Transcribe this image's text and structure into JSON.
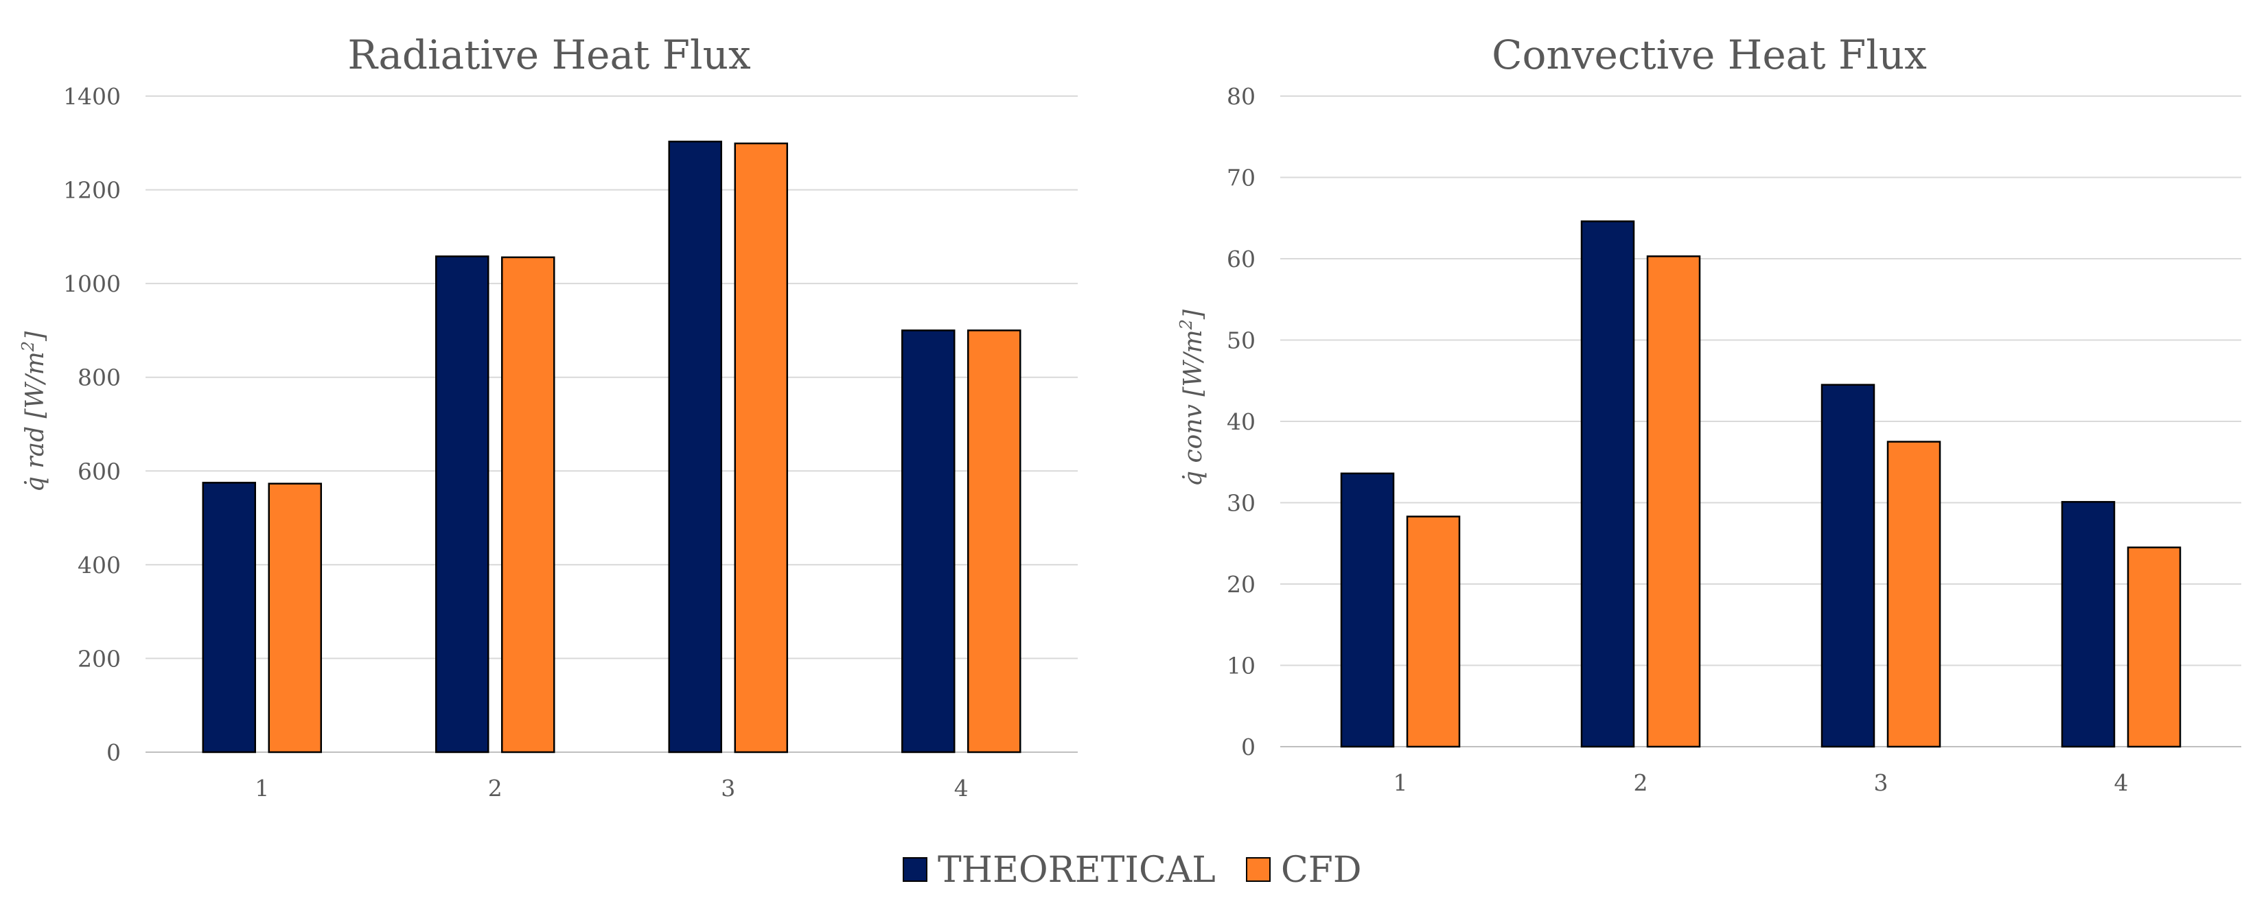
{
  "colors": {
    "THEORETICAL": "#001a5e",
    "CFD": "#ff7f27"
  },
  "legend": {
    "items": [
      "THEORETICAL",
      "CFD"
    ]
  },
  "chart_data": [
    {
      "type": "bar",
      "title": "Radiative Heat Flux",
      "xlabel": "",
      "ylabel": {
        "prefix": "q̇ rad [W/m",
        "sup": "2",
        "suffix": "]"
      },
      "categories": [
        "1",
        "2",
        "3",
        "4"
      ],
      "series": [
        {
          "name": "THEORETICAL",
          "values": [
            575,
            1058,
            1303,
            900
          ]
        },
        {
          "name": "CFD",
          "values": [
            573,
            1056,
            1299,
            900
          ]
        }
      ],
      "ylim": [
        0,
        1400
      ],
      "yticks": [
        0,
        200,
        400,
        600,
        800,
        1000,
        1200,
        1400
      ],
      "grid": true
    },
    {
      "type": "bar",
      "title": "Convective Heat Flux",
      "xlabel": "",
      "ylabel": {
        "prefix": "q̇ conv [W/m",
        "sup": "2",
        "suffix": "]"
      },
      "categories": [
        "1",
        "2",
        "3",
        "4"
      ],
      "series": [
        {
          "name": "THEORETICAL",
          "values": [
            33.6,
            64.6,
            44.5,
            30.1
          ]
        },
        {
          "name": "CFD",
          "values": [
            28.3,
            60.3,
            37.5,
            24.5
          ]
        }
      ],
      "ylim": [
        0,
        80
      ],
      "yticks": [
        0,
        10,
        20,
        30,
        40,
        50,
        60,
        70,
        80
      ],
      "grid": true
    }
  ]
}
